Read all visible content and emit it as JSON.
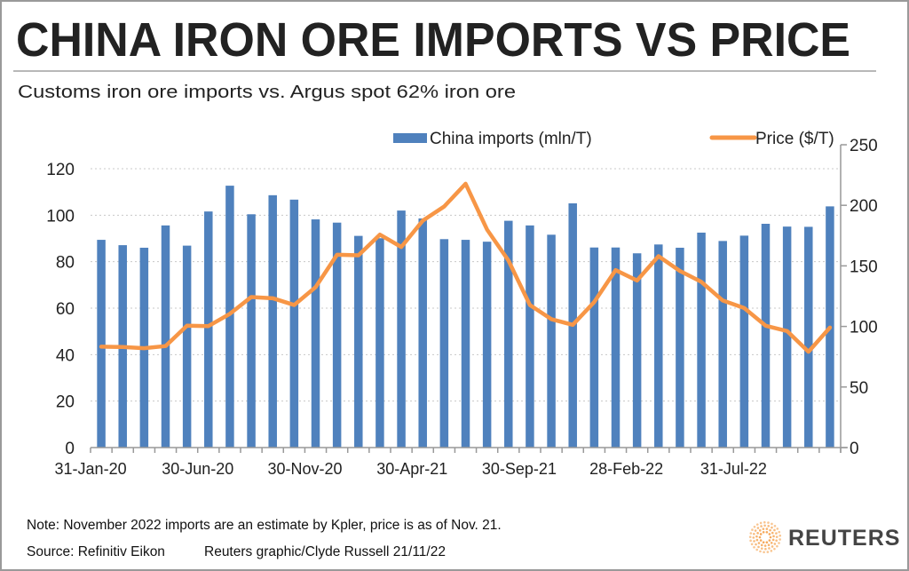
{
  "header": {
    "title": "CHINA IRON ORE IMPORTS VS PRICE",
    "subtitle": "Customs iron ore imports vs. Argus spot 62% iron ore"
  },
  "footer": {
    "note": "Note: November 2022 imports are an estimate by Kpler, price is as of Nov. 21.",
    "source": "Source: Refinitiv Eikon",
    "credit": "Reuters graphic/Clyde Russell 21/11/22",
    "logo_text": "REUTERS"
  },
  "colors": {
    "bars": "#4f81bd",
    "line": "#f79646",
    "logo": "#f5a04a"
  },
  "chart_data": {
    "type": "bar+line",
    "legend_position": "top-right",
    "grid": "horizontal dotted",
    "x_tick_labels": [
      "31-Jan-20",
      "30-Jun-20",
      "30-Nov-20",
      "30-Apr-21",
      "30-Sep-21",
      "28-Feb-22",
      "31-Jul-22"
    ],
    "categories": [
      "Jan-20",
      "Feb-20",
      "Mar-20",
      "Apr-20",
      "May-20",
      "Jun-20",
      "Jul-20",
      "Aug-20",
      "Sep-20",
      "Oct-20",
      "Nov-20",
      "Dec-20",
      "Jan-21",
      "Feb-21",
      "Mar-21",
      "Apr-21",
      "May-21",
      "Jun-21",
      "Jul-21",
      "Aug-21",
      "Sep-21",
      "Oct-21",
      "Nov-21",
      "Dec-21",
      "Jan-22",
      "Feb-22",
      "Mar-22",
      "Apr-22",
      "May-22",
      "Jun-22",
      "Jul-22",
      "Aug-22",
      "Sep-22",
      "Oct-22",
      "Nov-22"
    ],
    "left_axis": {
      "range": [
        0,
        120
      ],
      "ticks": [
        "0",
        "20",
        "40",
        "60",
        "80",
        "100",
        "120"
      ]
    },
    "right_axis": {
      "range": [
        0,
        250
      ],
      "ticks": [
        "0",
        "50",
        "100",
        "150",
        "200",
        "250"
      ]
    },
    "series": [
      {
        "name": "China imports (mln/T)",
        "type": "bar",
        "axis": "left",
        "values": [
          89.4,
          87.1,
          86.0,
          95.6,
          86.9,
          101.6,
          112.7,
          100.4,
          108.6,
          106.7,
          98.2,
          96.8,
          91.1,
          90.1,
          102.0,
          98.6,
          89.7,
          89.4,
          88.6,
          97.6,
          95.6,
          91.6,
          105.1,
          86.1,
          86.1,
          83.6,
          87.4,
          86.0,
          92.5,
          88.9,
          91.2,
          96.3,
          95.1,
          95.0,
          103.8
        ]
      },
      {
        "name": "Price ($/T)",
        "type": "line",
        "axis": "right",
        "values": [
          83.3,
          83,
          82,
          83.8,
          100.6,
          100.3,
          110.4,
          124.3,
          123.3,
          117.7,
          132.4,
          159.2,
          158.7,
          175.8,
          165.6,
          187.3,
          199,
          217.8,
          180,
          154.4,
          117.7,
          106,
          101.3,
          120.1,
          146.5,
          137.9,
          158,
          145.8,
          136.8,
          121.4,
          115.2,
          100.6,
          96.2,
          79.1,
          99.1
        ]
      }
    ]
  }
}
